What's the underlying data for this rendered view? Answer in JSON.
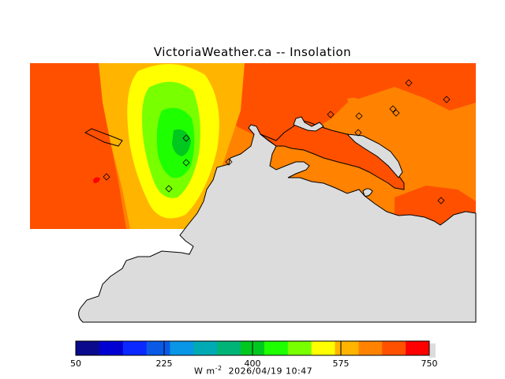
{
  "title": "VictoriaWeather.ca -- Insolation",
  "colorbar": {
    "ticks": [
      "50",
      "225",
      "400",
      "575",
      "750"
    ],
    "units_base": "W m",
    "units_exp": "-2",
    "timestamp": "2026/04/19 10:47",
    "colors": [
      "#0a0a8c",
      "#0000d2",
      "#0a28ff",
      "#0a5ae6",
      "#0a96e6",
      "#00aab4",
      "#00b478",
      "#00c81e",
      "#1eff00",
      "#78ff00",
      "#ffff00",
      "#ffb400",
      "#ff8200",
      "#ff5000",
      "#ff0000"
    ]
  },
  "colors": {
    "land": "#dcdcdc",
    "water_fill": "#ffffff",
    "outline": "#000000"
  },
  "stations_icon": "diamond-marker"
}
